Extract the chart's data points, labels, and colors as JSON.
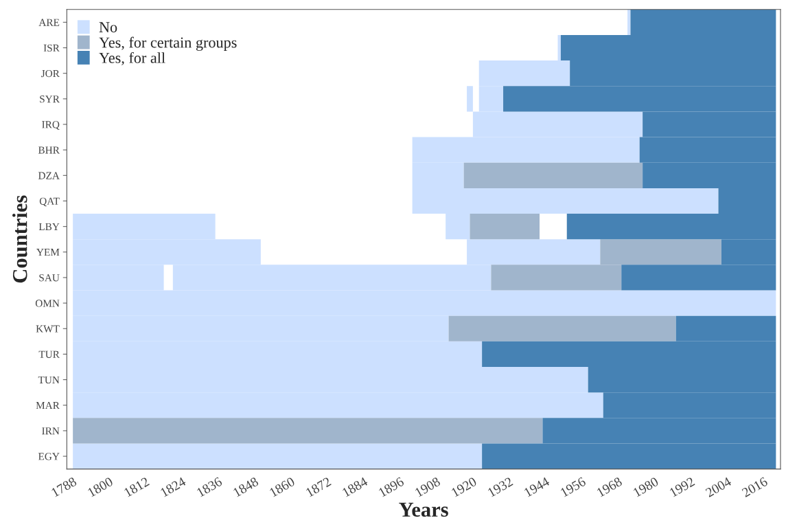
{
  "chart_data": {
    "type": "bar",
    "orientation": "horizontal",
    "xlabel": "Years",
    "ylabel": "Countries",
    "categories": [
      "ARE",
      "ISR",
      "JOR",
      "SYR",
      "IRQ",
      "BHR",
      "DZA",
      "QAT",
      "LBY",
      "YEM",
      "SAU",
      "OMN",
      "KWT",
      "TUR",
      "TUN",
      "MAR",
      "IRN",
      "EGY"
    ],
    "series": [
      {
        "name": "No",
        "color": "#cce0ff",
        "base": [
          1971,
          1948,
          1922,
          1918,
          1920,
          1900,
          1900,
          1900,
          1788,
          1788,
          1788,
          1788,
          1788,
          1788,
          1788,
          1788,
          null,
          1788
        ],
        "values": [
          1,
          1,
          30,
          2,
          56,
          75,
          17,
          101,
          47,
          62,
          30,
          232,
          124,
          135,
          170,
          175,
          null,
          135
        ]
      },
      {
        "color": "#cce0ff",
        "base": [
          null,
          null,
          null,
          1922,
          null,
          null,
          null,
          null,
          1911,
          1918,
          1821,
          null,
          null,
          null,
          null,
          null,
          null,
          null
        ],
        "values": [
          null,
          null,
          null,
          8,
          null,
          null,
          null,
          null,
          8,
          44,
          105,
          null,
          null,
          null,
          null,
          null,
          null,
          null
        ]
      },
      {
        "name": "Yes, for certain groups",
        "color": "#a0b5cc",
        "base": [
          null,
          null,
          null,
          null,
          null,
          null,
          1917,
          null,
          1919,
          1962,
          1926,
          null,
          1912,
          null,
          null,
          null,
          1788,
          null
        ],
        "values": [
          null,
          null,
          null,
          null,
          null,
          null,
          59,
          null,
          23,
          40,
          43,
          null,
          75,
          null,
          null,
          null,
          155,
          null
        ]
      },
      {
        "name": "Yes, for all",
        "color": "#4682b4",
        "base": [
          1972,
          1949,
          1952,
          1930,
          1976,
          1975,
          1976,
          2001,
          1951,
          2002,
          1969,
          null,
          1987,
          1923,
          1958,
          1963,
          1943,
          1923
        ],
        "values": [
          48,
          71,
          68,
          90,
          44,
          45,
          44,
          19,
          69,
          18,
          51,
          null,
          33,
          97,
          62,
          57,
          77,
          97
        ]
      }
    ],
    "xlim": [
      1786,
      2021.5
    ],
    "xticks": [
      1788,
      1800,
      1812,
      1824,
      1836,
      1848,
      1860,
      1872,
      1884,
      1896,
      1908,
      1920,
      1932,
      1944,
      1956,
      1968,
      1980,
      1992,
      2004,
      2016
    ],
    "legend": "top left",
    "grid": false
  }
}
